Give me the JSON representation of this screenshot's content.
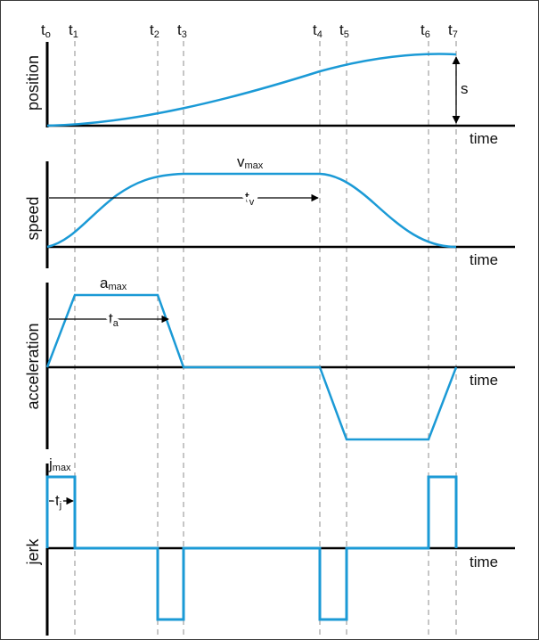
{
  "colors": {
    "curve": "#1b9ad6",
    "axis": "#000000",
    "guide": "#a8a8a8",
    "background": "#ffffff"
  },
  "time_marks": [
    {
      "base": "t",
      "sub": "o"
    },
    {
      "base": "t",
      "sub": "1"
    },
    {
      "base": "t",
      "sub": "2"
    },
    {
      "base": "t",
      "sub": "3"
    },
    {
      "base": "t",
      "sub": "4"
    },
    {
      "base": "t",
      "sub": "5"
    },
    {
      "base": "t",
      "sub": "6"
    },
    {
      "base": "t",
      "sub": "7"
    }
  ],
  "panels": {
    "position": {
      "ylabel": "position",
      "xlabel": "time",
      "annotation": "s"
    },
    "speed": {
      "ylabel": "speed",
      "xlabel": "time",
      "peak": {
        "base": "v",
        "sub": "max"
      },
      "duration": {
        "base": "t",
        "sub": "v"
      }
    },
    "acceleration": {
      "ylabel": "acceleration",
      "xlabel": "time",
      "peak": {
        "base": "a",
        "sub": "max"
      },
      "duration": {
        "base": "t",
        "sub": "a"
      }
    },
    "jerk": {
      "ylabel": "jerk",
      "xlabel": "time",
      "peak": {
        "base": "j",
        "sub": "max"
      },
      "duration": {
        "base": "t",
        "sub": "j"
      }
    }
  }
}
